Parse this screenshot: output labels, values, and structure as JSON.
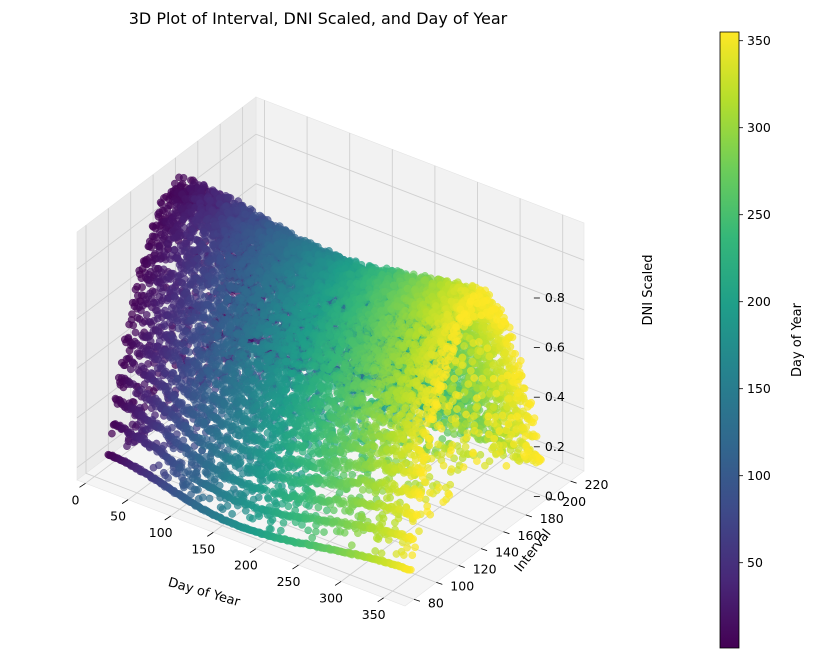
{
  "chart_data": {
    "type": "scatter",
    "subtype": "3d-scatter",
    "title": "3D Plot of Interval, DNI Scaled, and Day of Year",
    "xlabel": "Day of Year",
    "ylabel": "Interval",
    "zlabel": "DNI Scaled",
    "xlim": [
      -10,
      375
    ],
    "ylim": [
      72,
      232
    ],
    "zlim": [
      -0.05,
      0.95
    ],
    "x_ticks": [
      "0",
      "50",
      "100",
      "150",
      "200",
      "250",
      "300",
      "350"
    ],
    "y_ticks": [
      "80",
      "100",
      "120",
      "140",
      "160",
      "180",
      "200",
      "220"
    ],
    "z_ticks": [
      "0.0",
      "0.2",
      "0.4",
      "0.6",
      "0.8"
    ],
    "grid": true,
    "colormap": "viridis",
    "colorbar": {
      "label": "Day of Year",
      "min": 1,
      "max": 355,
      "ticks": [
        "50",
        "100",
        "150",
        "200",
        "250",
        "300",
        "350"
      ]
    },
    "series": [
      {
        "x": "Day of Year (1–355)",
        "y": "Interval (approx. 75–225, daylight 5-min intervals)",
        "z": "DNI Scaled (0.0–0.9, daily arch peaking at solar noon)",
        "marker": "circle",
        "alpha": 0.7,
        "color_by": "Day of Year"
      }
    ],
    "point_sample": {
      "days": [
        1,
        8,
        15,
        22,
        29,
        36,
        43,
        50,
        57,
        64,
        71,
        78,
        85,
        92,
        99,
        106,
        113,
        120,
        127,
        134,
        141,
        148,
        155,
        162,
        169,
        176,
        183,
        190,
        197,
        204,
        211,
        218,
        225,
        232,
        239,
        246,
        253,
        260,
        267,
        274,
        281,
        288,
        295,
        302,
        309,
        316,
        323,
        330,
        337,
        344,
        351,
        355
      ],
      "interval_range_winter": [
        92,
        210
      ],
      "interval_range_summer": [
        75,
        225
      ],
      "peak_dni_winter": 0.9,
      "peak_dni_summer": 0.8
    }
  },
  "colors": {
    "pane": "#f2f2f2",
    "grid": "#d0d0d0",
    "axis": "#000000"
  }
}
